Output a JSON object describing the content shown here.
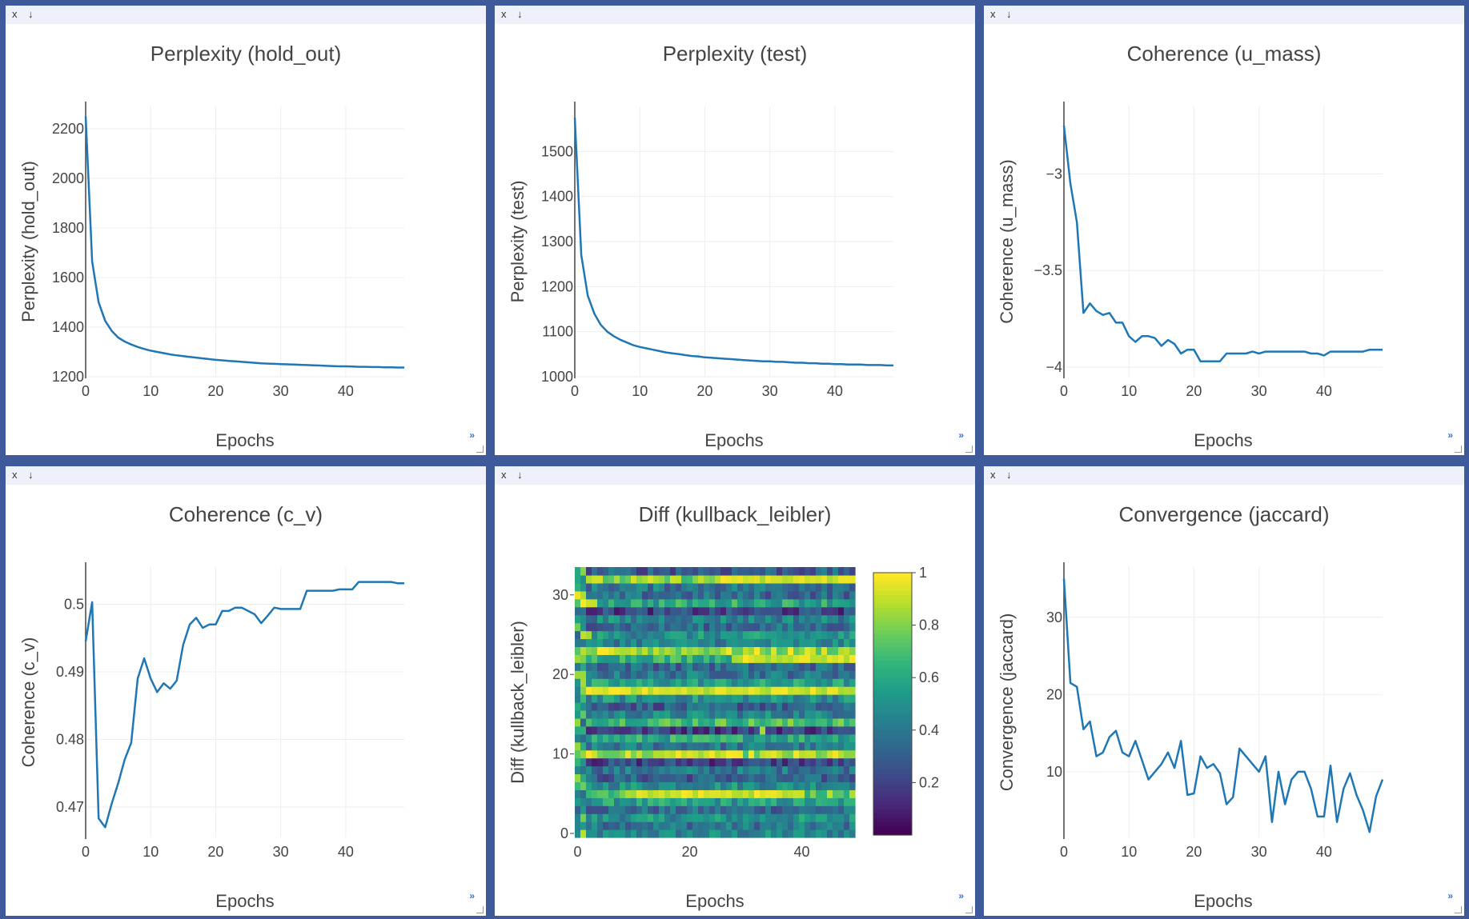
{
  "pane_controls": {
    "close": "x",
    "save": "↓",
    "expand": "»"
  },
  "colors": {
    "background": "#3e5a9b",
    "pane": "#ffffff",
    "pane_bar": "#eef1f9",
    "line": "#1f77b4",
    "grid": "#eeeeee",
    "axis": "#444444",
    "colorscale": "viridis"
  },
  "chart_data": [
    {
      "type": "line",
      "title": "Perplexity (hold_out)",
      "xlabel": "Epochs",
      "ylabel": "Perplexity (hold_out)",
      "x_ticks": [
        0,
        10,
        20,
        30,
        40
      ],
      "y_ticks": [
        1200,
        1400,
        1600,
        1800,
        2000,
        2200
      ],
      "xlim": [
        0,
        49
      ],
      "ylim": [
        1200,
        2290
      ],
      "grid": true,
      "series": [
        {
          "values": [
            2250,
            1665,
            1500,
            1425,
            1385,
            1358,
            1342,
            1330,
            1320,
            1312,
            1305,
            1300,
            1295,
            1290,
            1286,
            1283,
            1280,
            1277,
            1274,
            1271,
            1268,
            1266,
            1264,
            1262,
            1260,
            1258,
            1256,
            1254,
            1253,
            1252,
            1251,
            1250,
            1249,
            1248,
            1247,
            1246,
            1245,
            1244,
            1243,
            1242,
            1242,
            1241,
            1240,
            1240,
            1239,
            1239,
            1238,
            1238,
            1237,
            1237
          ]
        }
      ]
    },
    {
      "type": "line",
      "title": "Perplexity (test)",
      "xlabel": "Epochs",
      "ylabel": "Perplexity (test)",
      "x_ticks": [
        0,
        10,
        20,
        30,
        40
      ],
      "y_ticks": [
        1000,
        1100,
        1200,
        1300,
        1400,
        1500
      ],
      "xlim": [
        0,
        49
      ],
      "ylim": [
        1000,
        1600
      ],
      "grid": true,
      "series": [
        {
          "values": [
            1575,
            1270,
            1180,
            1140,
            1115,
            1100,
            1090,
            1082,
            1076,
            1070,
            1066,
            1063,
            1060,
            1057,
            1054,
            1052,
            1050,
            1048,
            1046,
            1045,
            1043,
            1042,
            1041,
            1040,
            1039,
            1038,
            1037,
            1036,
            1035,
            1034,
            1034,
            1033,
            1033,
            1032,
            1031,
            1031,
            1030,
            1030,
            1029,
            1029,
            1028,
            1028,
            1027,
            1027,
            1027,
            1026,
            1026,
            1026,
            1025,
            1025
          ]
        }
      ]
    },
    {
      "type": "line",
      "title": "Coherence (u_mass)",
      "xlabel": "Epochs",
      "ylabel": "Coherence (u_mass)",
      "x_ticks": [
        0,
        10,
        20,
        30,
        40
      ],
      "y_ticks": [
        -4,
        -3.5,
        -3
      ],
      "y_tick_labels": [
        "−4",
        "−3.5",
        "−3"
      ],
      "xlim": [
        0,
        49
      ],
      "ylim": [
        -4.05,
        -2.65
      ],
      "grid": true,
      "series": [
        {
          "values": [
            -2.75,
            -3.05,
            -3.25,
            -3.72,
            -3.67,
            -3.71,
            -3.73,
            -3.72,
            -3.77,
            -3.77,
            -3.84,
            -3.87,
            -3.84,
            -3.84,
            -3.85,
            -3.89,
            -3.86,
            -3.88,
            -3.93,
            -3.91,
            -3.91,
            -3.97,
            -3.97,
            -3.97,
            -3.97,
            -3.93,
            -3.93,
            -3.93,
            -3.93,
            -3.92,
            -3.93,
            -3.92,
            -3.92,
            -3.92,
            -3.92,
            -3.92,
            -3.92,
            -3.92,
            -3.93,
            -3.93,
            -3.94,
            -3.92,
            -3.92,
            -3.92,
            -3.92,
            -3.92,
            -3.92,
            -3.91,
            -3.91,
            -3.91
          ]
        }
      ]
    },
    {
      "type": "line",
      "title": "Coherence (c_v)",
      "xlabel": "Epochs",
      "ylabel": "Coherence (c_v)",
      "x_ticks": [
        0,
        10,
        20,
        30,
        40
      ],
      "y_ticks": [
        0.47,
        0.48,
        0.49,
        0.5
      ],
      "xlim": [
        0,
        49
      ],
      "ylim": [
        0.4655,
        0.5055
      ],
      "grid": true,
      "series": [
        {
          "values": [
            0.4945,
            0.5003,
            0.4683,
            0.467,
            0.4705,
            0.4735,
            0.477,
            0.4795,
            0.489,
            0.492,
            0.489,
            0.487,
            0.4883,
            0.4875,
            0.4887,
            0.494,
            0.497,
            0.498,
            0.4965,
            0.497,
            0.497,
            0.499,
            0.499,
            0.4995,
            0.4995,
            0.499,
            0.4985,
            0.4972,
            0.4983,
            0.4995,
            0.4993,
            0.4993,
            0.4993,
            0.4993,
            0.502,
            0.502,
            0.502,
            0.502,
            0.502,
            0.5022,
            0.5022,
            0.5022,
            0.5033,
            0.5033,
            0.5033,
            0.5033,
            0.5033,
            0.5033,
            0.5031,
            0.5031
          ]
        }
      ]
    },
    {
      "type": "heatmap",
      "title": "Diff (kullback_leibler)",
      "xlabel": "Epochs",
      "ylabel": "Diff (kullback_leibler)",
      "x_ticks": [
        0,
        20,
        40
      ],
      "y_ticks": [
        0,
        10,
        20,
        30
      ],
      "xlim": [
        -0.5,
        49.5
      ],
      "ylim": [
        -0.5,
        33.5
      ],
      "colorbar_ticks": [
        0.2,
        0.4,
        0.6,
        0.8,
        1
      ],
      "zlim": [
        0,
        1
      ],
      "rows": 34,
      "cols": 50,
      "row_means": [
        0.45,
        0.4,
        0.5,
        0.35,
        0.55,
        0.75,
        0.5,
        0.3,
        0.4,
        0.2,
        0.85,
        0.4,
        0.6,
        0.2,
        0.7,
        0.45,
        0.3,
        0.5,
        0.95,
        0.55,
        0.4,
        0.35,
        0.65,
        0.85,
        0.45,
        0.5,
        0.35,
        0.45,
        0.2,
        0.6,
        0.35,
        0.4,
        0.8,
        0.3
      ],
      "bright_cells": [
        [
          18,
          10,
          48
        ],
        [
          10,
          16,
          27
        ],
        [
          5,
          10,
          40
        ],
        [
          23,
          4,
          10
        ],
        [
          32,
          25,
          49
        ],
        [
          22,
          28,
          49
        ],
        [
          13,
          33,
          33
        ],
        [
          29,
          1,
          3
        ],
        [
          30,
          0,
          1
        ],
        [
          25,
          1,
          2
        ]
      ]
    },
    {
      "type": "line",
      "title": "Convergence (jaccard)",
      "xlabel": "Epochs",
      "ylabel": "Convergence (jaccard)",
      "x_ticks": [
        0,
        10,
        20,
        30,
        40
      ],
      "y_ticks": [
        10,
        20,
        30
      ],
      "xlim": [
        0,
        49
      ],
      "ylim": [
        1.5,
        36.5
      ],
      "grid": true,
      "series": [
        {
          "values": [
            35,
            21.5,
            21,
            15.5,
            16.5,
            12,
            12.5,
            14.5,
            15.3,
            12.5,
            12,
            14,
            11.5,
            9,
            10,
            11,
            12.5,
            10.5,
            14,
            7,
            7.2,
            12,
            10.5,
            11,
            9.8,
            5.8,
            6.7,
            13,
            12,
            11,
            10,
            12,
            3.5,
            10,
            5.8,
            9,
            10,
            10,
            7.8,
            4.2,
            4.2,
            10.8,
            3.5,
            7.8,
            9.8,
            7,
            5,
            2.2,
            6.8,
            9
          ]
        }
      ]
    }
  ]
}
